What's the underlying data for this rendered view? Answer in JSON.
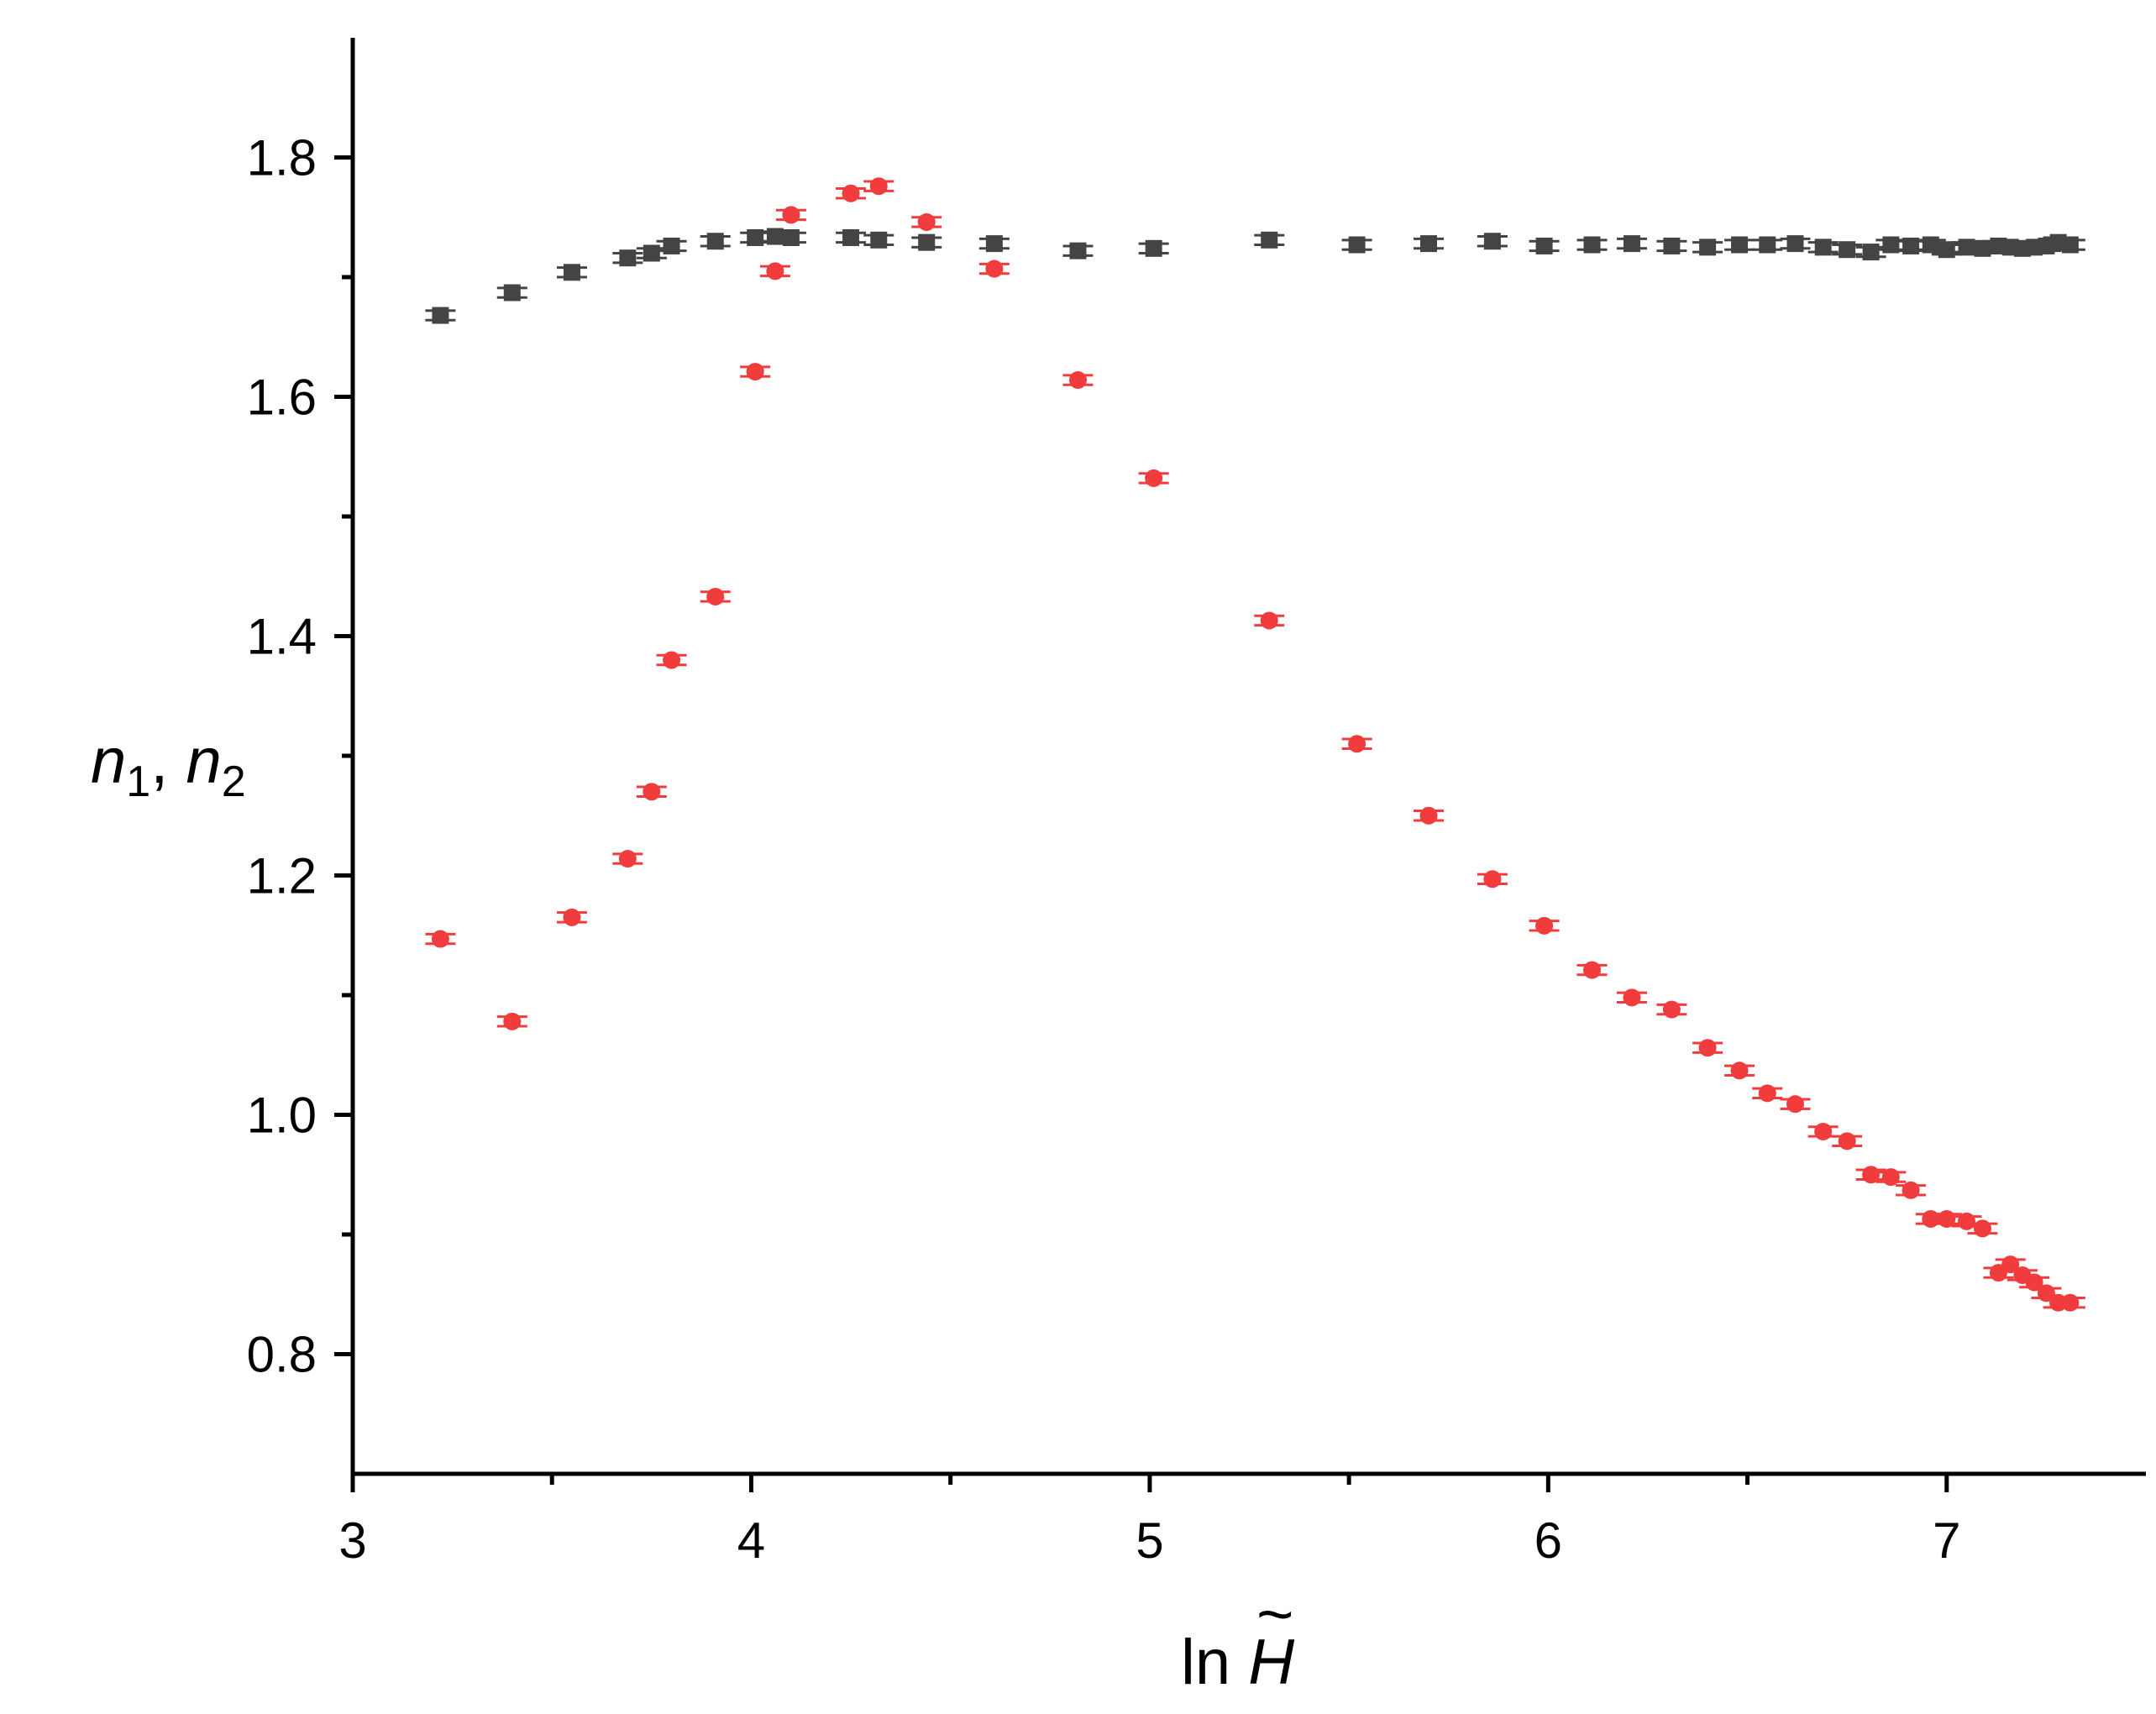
{
  "chart_data": {
    "type": "scatter",
    "title": "",
    "xlabel": {
      "prefix": "ln ",
      "symbol": "H",
      "accent": "~"
    },
    "ylabel": {
      "n1": "n",
      "n1_sub": "1",
      "sep": ", ",
      "n2": "n",
      "n2_sub": "2"
    },
    "xlim": [
      3,
      7.5
    ],
    "ylim": [
      0.7,
      1.9
    ],
    "x_ticks": [
      3,
      4,
      5,
      6,
      7
    ],
    "x_tick_labels": [
      "3",
      "4",
      "5",
      "6",
      "7"
    ],
    "x_minor_ticks": [
      3.5,
      4.5,
      5.5,
      6.5
    ],
    "y_ticks": [
      0.8,
      1.0,
      1.2,
      1.4,
      1.6,
      1.8
    ],
    "y_tick_labels": [
      "0.8",
      "1.0",
      "1.2",
      "1.4",
      "1.6",
      "1.8"
    ],
    "y_minor_ticks": [
      0.9,
      1.1,
      1.3,
      1.5,
      1.7
    ],
    "grid": false,
    "legend": "none",
    "series": [
      {
        "marker": "square",
        "color": "#444444",
        "x": [
          3.22,
          3.4,
          3.55,
          3.69,
          3.75,
          3.8,
          3.91,
          4.01,
          4.06,
          4.1,
          4.25,
          4.32,
          4.44,
          4.61,
          4.82,
          5.01,
          5.3,
          5.52,
          5.7,
          5.86,
          5.99,
          6.11,
          6.21,
          6.31,
          6.4,
          6.48,
          6.55,
          6.62,
          6.69,
          6.75,
          6.81,
          6.86,
          6.91,
          6.96,
          7.0,
          7.05,
          7.09,
          7.13,
          7.16,
          7.19,
          7.22,
          7.25,
          7.28,
          7.31
        ],
        "y": [
          1.668,
          1.687,
          1.704,
          1.716,
          1.72,
          1.726,
          1.73,
          1.733,
          1.734,
          1.733,
          1.733,
          1.731,
          1.729,
          1.728,
          1.722,
          1.724,
          1.731,
          1.727,
          1.728,
          1.73,
          1.726,
          1.727,
          1.728,
          1.726,
          1.725,
          1.727,
          1.727,
          1.728,
          1.725,
          1.723,
          1.721,
          1.727,
          1.726,
          1.727,
          1.723,
          1.725,
          1.724,
          1.726,
          1.725,
          1.724,
          1.725,
          1.726,
          1.729,
          1.727
        ],
        "yerr": 0.004
      },
      {
        "marker": "circle",
        "color": "#f03c3c",
        "x": [
          3.22,
          3.4,
          3.55,
          3.69,
          3.75,
          3.8,
          3.91,
          4.01,
          4.06,
          4.1,
          4.25,
          4.32,
          4.44,
          4.61,
          4.82,
          5.01,
          5.3,
          5.52,
          5.7,
          5.86,
          5.99,
          6.11,
          6.21,
          6.31,
          6.4,
          6.48,
          6.55,
          6.62,
          6.69,
          6.75,
          6.81,
          6.86,
          6.91,
          6.96,
          7.0,
          7.05,
          7.09,
          7.13,
          7.16,
          7.19,
          7.22,
          7.25,
          7.28,
          7.31
        ],
        "y": [
          1.147,
          1.078,
          1.165,
          1.214,
          1.27,
          1.38,
          1.433,
          1.621,
          1.705,
          1.752,
          1.77,
          1.776,
          1.746,
          1.707,
          1.614,
          1.532,
          1.413,
          1.31,
          1.25,
          1.197,
          1.158,
          1.121,
          1.098,
          1.088,
          1.056,
          1.037,
          1.018,
          1.009,
          0.986,
          0.978,
          0.95,
          0.948,
          0.937,
          0.913,
          0.913,
          0.911,
          0.905,
          0.868,
          0.875,
          0.866,
          0.86,
          0.851,
          0.843,
          0.843
        ],
        "yerr": 0.004
      }
    ]
  }
}
